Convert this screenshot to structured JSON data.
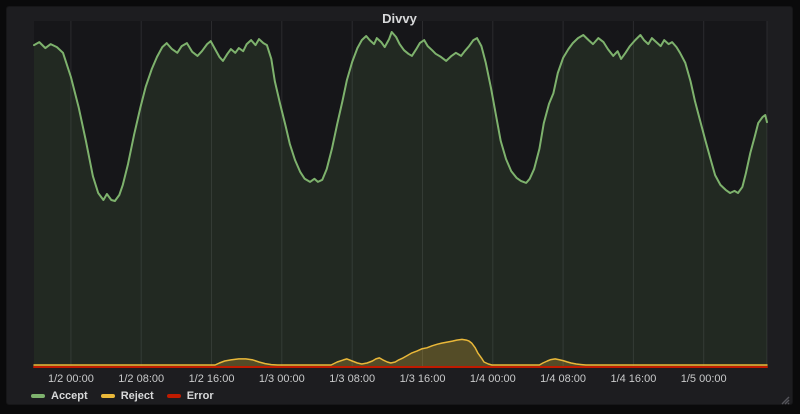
{
  "panel": {
    "title": "Divvy"
  },
  "colors": {
    "outer_background": "#0a0a0b",
    "panel_background": "#1d1d20",
    "plot_background": "#161619",
    "gridline": "#2b2b2e",
    "title_text": "#d8d9da",
    "axis_text": "#c9cacb",
    "legend_text": "#d8d9da",
    "accent_green": "#7eb26d",
    "accent_yellow": "#eab839",
    "accent_red": "#bf1b00",
    "resize_handle": "#55555a"
  },
  "chart_data": {
    "type": "area",
    "title": "Divvy",
    "legend_position": "bottom-left",
    "grid": {
      "vertical": true,
      "horizontal": false
    },
    "x_axis": {
      "unit": "time",
      "window_hours": 83.4,
      "ticks": [
        {
          "label": "1/2 00:00",
          "t": 4.2
        },
        {
          "label": "1/2 08:00",
          "t": 12.2
        },
        {
          "label": "1/2 16:00",
          "t": 20.2
        },
        {
          "label": "1/3 00:00",
          "t": 28.2
        },
        {
          "label": "1/3 08:00",
          "t": 36.2
        },
        {
          "label": "1/3 16:00",
          "t": 44.2
        },
        {
          "label": "1/4 00:00",
          "t": 52.2
        },
        {
          "label": "1/4 08:00",
          "t": 60.2
        },
        {
          "label": "1/4 16:00",
          "t": 68.2
        },
        {
          "label": "1/5 00:00",
          "t": 76.2
        }
      ]
    },
    "y_axis": {
      "visible": false,
      "range": [
        0,
        100
      ],
      "note": "no y-axis tick labels shown in panel; values are percent of plot height"
    },
    "series": [
      {
        "name": "Accept",
        "color": "#7eb26d",
        "fill_opacity": 0.12,
        "line_width": 2,
        "points": [
          [
            0,
            95.8
          ],
          [
            0.6,
            96.7
          ],
          [
            1.3,
            94.9
          ],
          [
            1.9,
            96.1
          ],
          [
            2.6,
            95.2
          ],
          [
            3.3,
            93.5
          ],
          [
            4.2,
            86.3
          ],
          [
            5.1,
            77.1
          ],
          [
            5.9,
            67.3
          ],
          [
            6.7,
            56.8
          ],
          [
            7.3,
            51.8
          ],
          [
            7.9,
            49.7
          ],
          [
            8.3,
            51.5
          ],
          [
            8.8,
            49.7
          ],
          [
            9.2,
            49.4
          ],
          [
            9.7,
            51.2
          ],
          [
            10.1,
            54.2
          ],
          [
            10.7,
            60.4
          ],
          [
            11.4,
            69.3
          ],
          [
            12.1,
            77.1
          ],
          [
            12.7,
            83.3
          ],
          [
            13.4,
            88.7
          ],
          [
            14,
            92.3
          ],
          [
            14.6,
            95.2
          ],
          [
            15.1,
            96.4
          ],
          [
            15.7,
            94.6
          ],
          [
            16.3,
            93.5
          ],
          [
            16.8,
            95.5
          ],
          [
            17.4,
            96.4
          ],
          [
            18,
            93.8
          ],
          [
            18.6,
            92.6
          ],
          [
            19.1,
            94
          ],
          [
            19.7,
            96.1
          ],
          [
            20.1,
            97
          ],
          [
            20.6,
            94.6
          ],
          [
            21.1,
            92.3
          ],
          [
            21.5,
            91.1
          ],
          [
            22,
            93.2
          ],
          [
            22.4,
            94.6
          ],
          [
            22.9,
            93.5
          ],
          [
            23.3,
            94.9
          ],
          [
            23.8,
            94
          ],
          [
            24.2,
            96.1
          ],
          [
            24.7,
            97.3
          ],
          [
            25.2,
            95.8
          ],
          [
            25.6,
            97.6
          ],
          [
            26.1,
            96.4
          ],
          [
            26.5,
            95.8
          ],
          [
            27,
            91.7
          ],
          [
            27.4,
            85.1
          ],
          [
            28,
            78.3
          ],
          [
            28.6,
            72
          ],
          [
            29.1,
            66.4
          ],
          [
            29.7,
            61.6
          ],
          [
            30.3,
            58
          ],
          [
            30.8,
            56
          ],
          [
            31.4,
            55.1
          ],
          [
            31.9,
            56
          ],
          [
            32.3,
            55.1
          ],
          [
            32.8,
            55.7
          ],
          [
            33.3,
            58.9
          ],
          [
            33.9,
            64.9
          ],
          [
            34.5,
            72.3
          ],
          [
            35.1,
            79.2
          ],
          [
            35.6,
            85.4
          ],
          [
            36.2,
            90.8
          ],
          [
            36.8,
            94.9
          ],
          [
            37.3,
            97.3
          ],
          [
            37.8,
            98.5
          ],
          [
            38.2,
            97.3
          ],
          [
            38.7,
            96.1
          ],
          [
            39,
            97.9
          ],
          [
            39.5,
            96.7
          ],
          [
            39.9,
            95.2
          ],
          [
            40.4,
            97.6
          ],
          [
            40.7,
            99.7
          ],
          [
            41.2,
            98.2
          ],
          [
            41.6,
            96.1
          ],
          [
            42.1,
            94.3
          ],
          [
            42.6,
            93.2
          ],
          [
            43,
            92.6
          ],
          [
            43.5,
            94.6
          ],
          [
            43.9,
            96.4
          ],
          [
            44.4,
            97.3
          ],
          [
            44.8,
            95.5
          ],
          [
            45.3,
            94.3
          ],
          [
            45.7,
            93.2
          ],
          [
            46.3,
            92.3
          ],
          [
            46.9,
            91.1
          ],
          [
            47.5,
            92.6
          ],
          [
            48,
            93.5
          ],
          [
            48.6,
            92.6
          ],
          [
            49,
            94
          ],
          [
            49.5,
            95.5
          ],
          [
            50,
            97.3
          ],
          [
            50.4,
            97.9
          ],
          [
            50.9,
            95.5
          ],
          [
            51.4,
            90.5
          ],
          [
            52,
            83
          ],
          [
            52.6,
            74.4
          ],
          [
            53.1,
            67.3
          ],
          [
            53.7,
            61.9
          ],
          [
            54.3,
            58.3
          ],
          [
            54.9,
            56.3
          ],
          [
            55.4,
            55.4
          ],
          [
            56,
            54.8
          ],
          [
            56.4,
            56
          ],
          [
            56.9,
            58.9
          ],
          [
            57.5,
            64.9
          ],
          [
            58,
            72.6
          ],
          [
            58.6,
            78.3
          ],
          [
            59.1,
            81.5
          ],
          [
            59.6,
            87.5
          ],
          [
            60.2,
            92
          ],
          [
            60.8,
            94.6
          ],
          [
            61.3,
            96.4
          ],
          [
            61.9,
            97.9
          ],
          [
            62.5,
            98.8
          ],
          [
            63.1,
            97.3
          ],
          [
            63.6,
            96.1
          ],
          [
            64.2,
            97.9
          ],
          [
            64.8,
            96.7
          ],
          [
            65.3,
            94.6
          ],
          [
            65.9,
            92.6
          ],
          [
            66.4,
            94
          ],
          [
            66.8,
            91.7
          ],
          [
            67.3,
            93.5
          ],
          [
            67.8,
            95.5
          ],
          [
            68.4,
            97.3
          ],
          [
            69,
            98.8
          ],
          [
            69.4,
            97.3
          ],
          [
            69.9,
            96.1
          ],
          [
            70.3,
            97.9
          ],
          [
            70.8,
            96.7
          ],
          [
            71.3,
            95.5
          ],
          [
            71.7,
            97.3
          ],
          [
            72.2,
            96.1
          ],
          [
            72.6,
            96.7
          ],
          [
            73.1,
            95.2
          ],
          [
            73.5,
            93.5
          ],
          [
            74.1,
            90.5
          ],
          [
            74.7,
            85.1
          ],
          [
            75.2,
            79.2
          ],
          [
            75.8,
            73.2
          ],
          [
            76.4,
            67.3
          ],
          [
            77,
            61.6
          ],
          [
            77.5,
            57.1
          ],
          [
            78.1,
            54.2
          ],
          [
            78.7,
            52.7
          ],
          [
            79.2,
            51.8
          ],
          [
            79.7,
            52.4
          ],
          [
            80.1,
            51.8
          ],
          [
            80.6,
            53.6
          ],
          [
            81,
            57.7
          ],
          [
            81.5,
            63.7
          ],
          [
            82,
            68.5
          ],
          [
            82.4,
            72.6
          ],
          [
            82.9,
            74.4
          ],
          [
            83.2,
            75
          ],
          [
            83.4,
            72.9
          ]
        ]
      },
      {
        "name": "Reject",
        "color": "#eab839",
        "fill_opacity": 0.25,
        "line_width": 1.5,
        "points": [
          [
            0,
            0.6
          ],
          [
            20.6,
            0.6
          ],
          [
            21.1,
            1.2
          ],
          [
            21.7,
            1.8
          ],
          [
            22.4,
            2.1
          ],
          [
            23.3,
            2.4
          ],
          [
            24.1,
            2.4
          ],
          [
            24.9,
            2.1
          ],
          [
            25.6,
            1.5
          ],
          [
            26.3,
            1
          ],
          [
            27,
            0.7
          ],
          [
            27.7,
            0.6
          ],
          [
            33.8,
            0.6
          ],
          [
            34.5,
            1.5
          ],
          [
            35.2,
            2.1
          ],
          [
            35.6,
            2.4
          ],
          [
            36.2,
            1.8
          ],
          [
            36.8,
            1.2
          ],
          [
            37.3,
            0.9
          ],
          [
            37.9,
            1.2
          ],
          [
            38.5,
            1.8
          ],
          [
            38.9,
            2.4
          ],
          [
            39.3,
            2.7
          ],
          [
            39.7,
            2.1
          ],
          [
            40.2,
            1.5
          ],
          [
            40.6,
            1.2
          ],
          [
            41.1,
            1.5
          ],
          [
            41.5,
            2.1
          ],
          [
            42,
            2.7
          ],
          [
            42.4,
            3.3
          ],
          [
            43,
            4.2
          ],
          [
            43.6,
            4.8
          ],
          [
            44.1,
            5.4
          ],
          [
            44.7,
            5.7
          ],
          [
            45.3,
            6.3
          ],
          [
            45.9,
            6.8
          ],
          [
            46.4,
            7.1
          ],
          [
            47,
            7.4
          ],
          [
            47.6,
            7.7
          ],
          [
            48.1,
            8
          ],
          [
            48.7,
            8.2
          ],
          [
            49.2,
            8
          ],
          [
            49.5,
            7.7
          ],
          [
            49.8,
            7.1
          ],
          [
            50.2,
            5.7
          ],
          [
            50.5,
            4.2
          ],
          [
            50.9,
            2.7
          ],
          [
            51.2,
            1.5
          ],
          [
            51.7,
            0.9
          ],
          [
            52.1,
            0.6
          ],
          [
            57.5,
            0.6
          ],
          [
            57.9,
            1.2
          ],
          [
            58.4,
            1.8
          ],
          [
            58.8,
            2.2
          ],
          [
            59.3,
            2.4
          ],
          [
            59.7,
            2.2
          ],
          [
            60.2,
            1.9
          ],
          [
            60.7,
            1.5
          ],
          [
            61.1,
            1.2
          ],
          [
            61.7,
            0.9
          ],
          [
            62.3,
            0.7
          ],
          [
            62.8,
            0.6
          ],
          [
            83.4,
            0.6
          ]
        ]
      },
      {
        "name": "Error",
        "color": "#bf1b00",
        "fill_opacity": 0,
        "line_width": 2,
        "points": [
          [
            0,
            0
          ],
          [
            83.4,
            0
          ]
        ]
      }
    ]
  }
}
